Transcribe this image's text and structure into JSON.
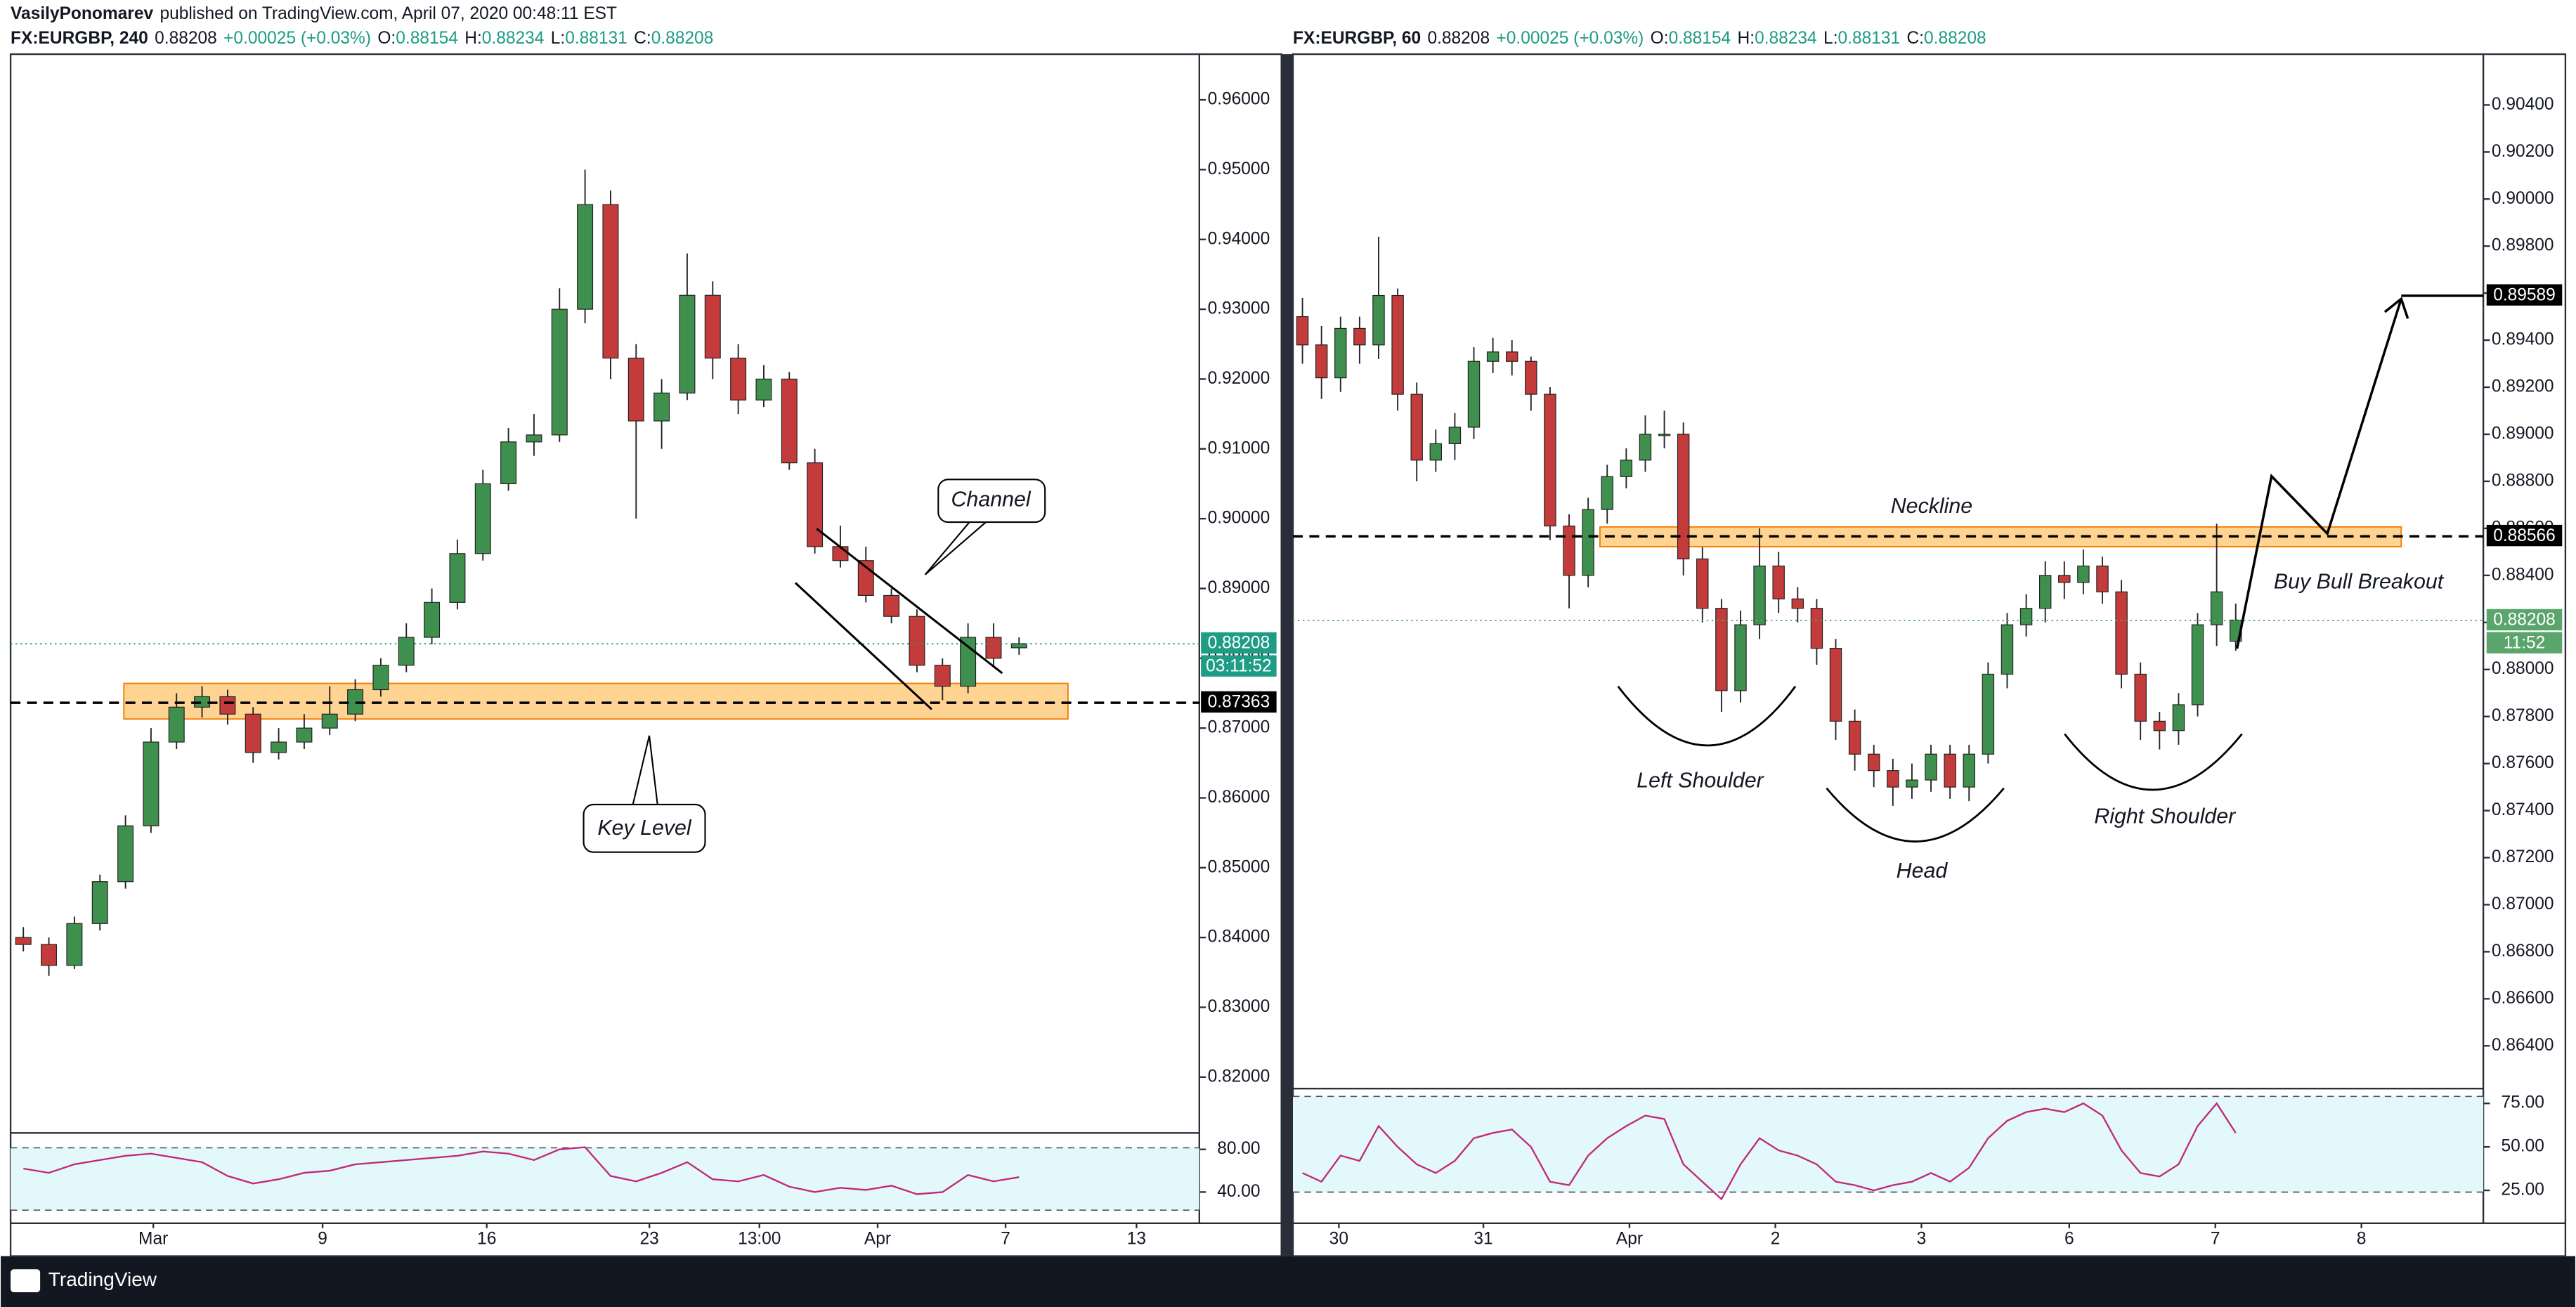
{
  "header": {
    "author": "VasilyPonomarev",
    "text": "published on TradingView.com, April 07, 2020 00:48:11 EST"
  },
  "footer": {
    "brand": "TradingView"
  },
  "chart_data": [
    {
      "type": "candlestick",
      "title": "FX:EURGBP, 240",
      "last": "0.88208",
      "change": "+0.00025 (+0.03%)",
      "ohlc_header": [
        {
          "key": "O:",
          "value": "0.88154"
        },
        {
          "key": "H:",
          "value": "0.88234"
        },
        {
          "key": "L:",
          "value": "0.88131"
        },
        {
          "key": "C:",
          "value": "0.88208"
        }
      ],
      "up_color": "#3f8f4e",
      "down_color": "#c43b3b",
      "grid": false,
      "open": [
        0.84,
        0.839,
        0.836,
        0.842,
        0.848,
        0.856,
        0.868,
        0.873,
        0.8745,
        0.872,
        0.8665,
        0.868,
        0.87,
        0.872,
        0.8755,
        0.879,
        0.883,
        0.888,
        0.895,
        0.905,
        0.911,
        0.912,
        0.93,
        0.945,
        0.923,
        0.914,
        0.918,
        0.932,
        0.923,
        0.917,
        0.92,
        0.908,
        0.896,
        0.894,
        0.889,
        0.886,
        0.879,
        0.876,
        0.883,
        0.8815
      ],
      "high": [
        0.8415,
        0.84,
        0.843,
        0.849,
        0.8575,
        0.87,
        0.875,
        0.876,
        0.8755,
        0.873,
        0.87,
        0.872,
        0.876,
        0.877,
        0.88,
        0.885,
        0.89,
        0.897,
        0.907,
        0.913,
        0.915,
        0.933,
        0.95,
        0.947,
        0.925,
        0.92,
        0.938,
        0.934,
        0.925,
        0.922,
        0.921,
        0.91,
        0.899,
        0.896,
        0.89,
        0.887,
        0.88,
        0.885,
        0.885,
        0.883
      ],
      "low": [
        0.838,
        0.8345,
        0.8355,
        0.841,
        0.847,
        0.855,
        0.867,
        0.8715,
        0.8705,
        0.865,
        0.8655,
        0.867,
        0.869,
        0.871,
        0.8745,
        0.878,
        0.882,
        0.887,
        0.894,
        0.904,
        0.909,
        0.911,
        0.928,
        0.92,
        0.9,
        0.91,
        0.917,
        0.92,
        0.915,
        0.916,
        0.907,
        0.895,
        0.893,
        0.888,
        0.885,
        0.878,
        0.874,
        0.875,
        0.879,
        0.8805
      ],
      "close": [
        0.839,
        0.836,
        0.842,
        0.848,
        0.856,
        0.868,
        0.873,
        0.8745,
        0.872,
        0.8665,
        0.868,
        0.87,
        0.872,
        0.8755,
        0.879,
        0.883,
        0.888,
        0.895,
        0.905,
        0.911,
        0.912,
        0.93,
        0.945,
        0.923,
        0.914,
        0.918,
        0.932,
        0.923,
        0.917,
        0.92,
        0.908,
        0.896,
        0.894,
        0.889,
        0.886,
        0.879,
        0.876,
        0.883,
        0.88,
        0.8821
      ],
      "xlim": [
        -0.5,
        46.06
      ],
      "xticks": [
        {
          "value": 5.09,
          "label": "Mar"
        },
        {
          "value": 11.72,
          "label": "9"
        },
        {
          "value": 18.15,
          "label": "16"
        },
        {
          "value": 24.52,
          "label": "23"
        },
        {
          "value": 28.83,
          "label": "13:00"
        },
        {
          "value": 33.46,
          "label": "Apr"
        },
        {
          "value": 38.47,
          "label": "7"
        },
        {
          "value": 43.6,
          "label": "13"
        }
      ],
      "ylim": [
        0.812,
        0.9656
      ],
      "yticks": [
        {
          "value": 0.82,
          "label": "0.82000"
        },
        {
          "value": 0.83,
          "label": "0.83000"
        },
        {
          "value": 0.84,
          "label": "0.84000"
        },
        {
          "value": 0.85,
          "label": "0.85000"
        },
        {
          "value": 0.86,
          "label": "0.86000"
        },
        {
          "value": 0.87,
          "label": "0.87000"
        },
        {
          "value": 0.88,
          "label": "0.88000"
        },
        {
          "value": 0.89,
          "label": "0.89000"
        },
        {
          "value": 0.9,
          "label": "0.90000"
        },
        {
          "value": 0.91,
          "label": "0.91000"
        },
        {
          "value": 0.92,
          "label": "0.92000"
        },
        {
          "value": 0.93,
          "label": "0.93000"
        },
        {
          "value": 0.94,
          "label": "0.94000"
        },
        {
          "value": 0.95,
          "label": "0.95000"
        },
        {
          "value": 0.96,
          "label": "0.96000"
        }
      ],
      "last_price": 0.88208,
      "last_color": "#1e9c85",
      "countdown": "03:11:52",
      "levels": [
        0.87363
      ],
      "zone": [
        0.8764,
        0.8713
      ],
      "annotations": [
        "Channel",
        "Key Level"
      ],
      "rsi": {
        "color": "#c2287a",
        "ylim": [
          21.5,
          95.4
        ],
        "yticks": [
          {
            "value": 80,
            "label": "80.00"
          },
          {
            "value": 40,
            "label": "40.00"
          }
        ],
        "bands": [
          81.5,
          23
        ],
        "values": [
          62,
          58,
          66,
          70,
          74,
          76,
          72,
          68,
          55,
          48,
          52,
          58,
          60,
          66,
          68,
          70,
          72,
          74,
          78,
          76,
          70,
          80,
          82,
          55,
          50,
          58,
          68,
          52,
          50,
          56,
          45,
          40,
          44,
          42,
          46,
          38,
          40,
          56,
          50,
          54
        ]
      }
    },
    {
      "type": "candlestick",
      "title": "FX:EURGBP, 60",
      "last": "0.88208",
      "change": "+0.00025 (+0.03%)",
      "ohlc_header": [
        {
          "key": "O:",
          "value": "0.88154"
        },
        {
          "key": "H:",
          "value": "0.88234"
        },
        {
          "key": "L:",
          "value": "0.88131"
        },
        {
          "key": "C:",
          "value": "0.88208"
        }
      ],
      "up_color": "#3f8f4e",
      "down_color": "#c43b3b",
      "grid": false,
      "open": [
        0.895,
        0.8938,
        0.8924,
        0.8945,
        0.8938,
        0.8959,
        0.8917,
        0.8889,
        0.8896,
        0.8903,
        0.8931,
        0.8935,
        0.8931,
        0.8917,
        0.8861,
        0.884,
        0.8868,
        0.8882,
        0.8889,
        0.89,
        0.89,
        0.8847,
        0.8826,
        0.8791,
        0.8819,
        0.8844,
        0.883,
        0.8826,
        0.8809,
        0.8778,
        0.8764,
        0.8757,
        0.875,
        0.8753,
        0.8764,
        0.875,
        0.8764,
        0.8798,
        0.8819,
        0.8826,
        0.884,
        0.8837,
        0.8844,
        0.8833,
        0.8798,
        0.8778,
        0.8774,
        0.8785,
        0.8819,
        0.8812
      ],
      "high": [
        0.8958,
        0.8946,
        0.895,
        0.895,
        0.8984,
        0.8962,
        0.8922,
        0.8902,
        0.8909,
        0.8937,
        0.8941,
        0.894,
        0.8933,
        0.892,
        0.8866,
        0.8873,
        0.8887,
        0.8894,
        0.8908,
        0.891,
        0.8905,
        0.8852,
        0.883,
        0.8825,
        0.886,
        0.885,
        0.8835,
        0.883,
        0.8813,
        0.8783,
        0.8768,
        0.8762,
        0.876,
        0.8768,
        0.8768,
        0.8768,
        0.8803,
        0.8824,
        0.8832,
        0.8846,
        0.8846,
        0.8851,
        0.8848,
        0.8838,
        0.8803,
        0.8782,
        0.879,
        0.8824,
        0.8862,
        0.8828
      ],
      "low": [
        0.893,
        0.8915,
        0.8918,
        0.893,
        0.8932,
        0.891,
        0.888,
        0.8884,
        0.8889,
        0.8898,
        0.8926,
        0.8925,
        0.891,
        0.8855,
        0.8826,
        0.8835,
        0.8862,
        0.8877,
        0.8884,
        0.8894,
        0.884,
        0.882,
        0.8782,
        0.8786,
        0.8813,
        0.8824,
        0.882,
        0.8802,
        0.877,
        0.8757,
        0.875,
        0.8742,
        0.8745,
        0.8748,
        0.8745,
        0.8744,
        0.876,
        0.8792,
        0.8814,
        0.882,
        0.883,
        0.8832,
        0.8828,
        0.8792,
        0.877,
        0.8766,
        0.8768,
        0.878,
        0.881,
        0.8808
      ],
      "close": [
        0.8938,
        0.8924,
        0.8945,
        0.8938,
        0.8959,
        0.8917,
        0.8889,
        0.8896,
        0.8903,
        0.8931,
        0.8935,
        0.8931,
        0.8917,
        0.8861,
        0.884,
        0.8868,
        0.8882,
        0.8889,
        0.89,
        0.89,
        0.8847,
        0.8826,
        0.8791,
        0.8819,
        0.8844,
        0.883,
        0.8826,
        0.8809,
        0.8778,
        0.8764,
        0.8757,
        0.875,
        0.8753,
        0.8764,
        0.875,
        0.8764,
        0.8798,
        0.8819,
        0.8826,
        0.884,
        0.8837,
        0.8844,
        0.8833,
        0.8798,
        0.8778,
        0.8774,
        0.8785,
        0.8819,
        0.8833,
        0.8821
      ],
      "xlim": [
        -0.5,
        62.0
      ],
      "xticks": [
        {
          "value": 1.91,
          "label": "30"
        },
        {
          "value": 9.5,
          "label": "31"
        },
        {
          "value": 17.17,
          "label": "Apr"
        },
        {
          "value": 24.83,
          "label": "2"
        },
        {
          "value": 32.5,
          "label": "3"
        },
        {
          "value": 40.26,
          "label": "6"
        },
        {
          "value": 47.93,
          "label": "7"
        },
        {
          "value": 55.6,
          "label": "8"
        }
      ],
      "ylim": [
        0.86218,
        0.90588
      ],
      "yticks": [
        {
          "value": 0.864,
          "label": "0.86400"
        },
        {
          "value": 0.866,
          "label": "0.86600"
        },
        {
          "value": 0.868,
          "label": "0.86800"
        },
        {
          "value": 0.87,
          "label": "0.87000"
        },
        {
          "value": 0.872,
          "label": "0.87200"
        },
        {
          "value": 0.874,
          "label": "0.87400"
        },
        {
          "value": 0.876,
          "label": "0.87600"
        },
        {
          "value": 0.878,
          "label": "0.87800"
        },
        {
          "value": 0.88,
          "label": "0.88000"
        },
        {
          "value": 0.882,
          "label": "0.88200"
        },
        {
          "value": 0.884,
          "label": "0.88400"
        },
        {
          "value": 0.886,
          "label": "0.88600"
        },
        {
          "value": 0.888,
          "label": "0.88800"
        },
        {
          "value": 0.89,
          "label": "0.89000"
        },
        {
          "value": 0.892,
          "label": "0.89200"
        },
        {
          "value": 0.894,
          "label": "0.89400"
        },
        {
          "value": 0.896,
          "label": "0.89600"
        },
        {
          "value": 0.898,
          "label": "0.89800"
        },
        {
          "value": 0.9,
          "label": "0.90000"
        },
        {
          "value": 0.902,
          "label": "0.90200"
        },
        {
          "value": 0.904,
          "label": "0.90400"
        }
      ],
      "last_price": 0.88208,
      "last_color": "#5aa56c",
      "countdown": "11:52",
      "levels": [
        0.88566,
        0.89589
      ],
      "zone": [
        0.88606,
        0.88522
      ],
      "annotations": [
        "Neckline",
        "Left Shoulder",
        "Head",
        "Right Shoulder",
        "Buy Bull Breakout"
      ],
      "rsi": {
        "color": "#c2287a",
        "ylim": [
          12.7,
          83.5
        ],
        "yticks": [
          {
            "value": 75,
            "label": "75.00"
          },
          {
            "value": 50,
            "label": "50.00"
          },
          {
            "value": 25,
            "label": "25.00"
          }
        ],
        "bands": [
          79,
          24
        ],
        "values": [
          35,
          30,
          45,
          42,
          62,
          50,
          40,
          35,
          42,
          55,
          58,
          60,
          50,
          30,
          28,
          45,
          55,
          62,
          68,
          66,
          40,
          30,
          20,
          40,
          55,
          48,
          45,
          40,
          30,
          28,
          25,
          28,
          30,
          35,
          30,
          38,
          55,
          65,
          70,
          72,
          70,
          75,
          68,
          48,
          35,
          33,
          40,
          62,
          75,
          58
        ]
      }
    }
  ]
}
